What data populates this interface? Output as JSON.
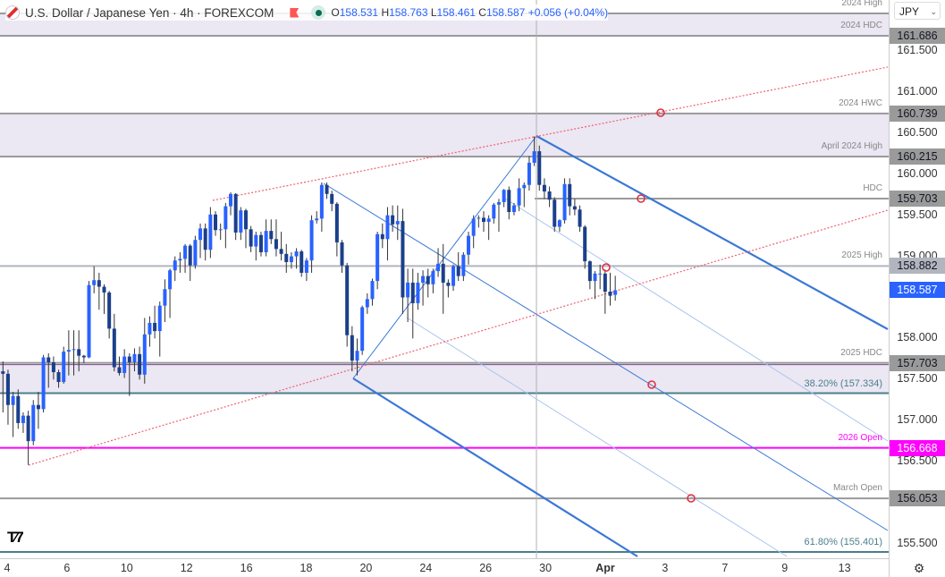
{
  "header": {
    "title": "U.S. Dollar / Japanese Yen · 4h · FOREXCOM",
    "open_label": "O",
    "open": "158.531",
    "high_label": "H",
    "high": "158.763",
    "low_label": "L",
    "low": "158.461",
    "close_label": "C",
    "close": "158.587",
    "change": "+0.056 (+0.04%)"
  },
  "currency_select": "JPY",
  "logo_text": "TV",
  "icons": {
    "settings": "gear-icon",
    "flag": "us-flag-icon",
    "alert": "red-flag-icon",
    "market_status": "market-open-dot-icon"
  },
  "colors": {
    "up": "#2962ff",
    "down": "#1b3f8b",
    "pitchfork": "#3a78d6",
    "channel": "#f06070",
    "magenta": "#ff00ff",
    "fib": "#4a7f8c",
    "zone": "#ebe7f3",
    "last_price": "#2962ff"
  },
  "chart_data": {
    "type": "candlestick",
    "symbol": "USDJPY",
    "timeframe": "4h",
    "ylim": [
      155.35,
      162.0
    ],
    "y_ticks": [
      "161.500",
      "161.000",
      "160.500",
      "160.000",
      "159.500",
      "159.000",
      "158.000",
      "157.500",
      "157.000",
      "156.500",
      "155.500"
    ],
    "x_ticks": [
      "4",
      "6",
      "10",
      "12",
      "16",
      "18",
      "20",
      "24",
      "26",
      "30",
      "Apr",
      "3",
      "7",
      "9",
      "13"
    ],
    "last_price": "158.587",
    "levels": [
      {
        "name": "2024 High",
        "price": 161.958,
        "label": "2024 High",
        "price_label": ""
      },
      {
        "name": "2024 HDC",
        "price": 161.686,
        "label": "2024 HDC",
        "price_label": "161.686"
      },
      {
        "name": "2024 HWC",
        "price": 160.739,
        "label": "2024 HWC",
        "price_label": "160.739"
      },
      {
        "name": "April 2024 High",
        "price": 160.215,
        "label": "April 2024 High",
        "price_label": "160.215"
      },
      {
        "name": "HDC",
        "price": 159.703,
        "label": "HDC",
        "price_label": "159.703"
      },
      {
        "name": "2025 High",
        "price": 158.882,
        "label": "2025 High",
        "price_label": "158.882"
      },
      {
        "name": "2025 HDC",
        "price": 157.703,
        "label": "2025 HDC",
        "price_label": "157.703"
      },
      {
        "name": "38.2% retracement",
        "price": 157.334,
        "label": "38.20% (157.334)",
        "price_label": ""
      },
      {
        "name": "2026 Open",
        "price": 156.668,
        "label": "2026 Open",
        "price_label": "156.668"
      },
      {
        "name": "March Open",
        "price": 156.053,
        "label": "March Open",
        "price_label": "156.053"
      },
      {
        "name": "61.8% retracement",
        "price": 155.401,
        "label": "61.80% (155.401)",
        "price_label": ""
      }
    ],
    "zones": [
      [
        161.686,
        161.958
      ],
      [
        160.215,
        160.739
      ],
      [
        157.334,
        157.703
      ]
    ],
    "candles": [
      [
        157.6,
        157.72,
        157.1,
        157.57
      ],
      [
        157.57,
        157.62,
        156.95,
        157.19
      ],
      [
        157.19,
        157.35,
        156.8,
        157.3
      ],
      [
        157.3,
        157.38,
        156.9,
        156.97
      ],
      [
        156.97,
        157.1,
        156.85,
        157.06
      ],
      [
        157.06,
        157.12,
        156.46,
        156.75
      ],
      [
        156.75,
        157.25,
        156.7,
        157.19
      ],
      [
        157.19,
        157.35,
        156.9,
        157.14
      ],
      [
        157.14,
        157.8,
        157.1,
        157.77
      ],
      [
        157.77,
        157.82,
        157.4,
        157.71
      ],
      [
        157.71,
        157.78,
        157.5,
        157.59
      ],
      [
        157.59,
        157.62,
        157.4,
        157.47
      ],
      [
        157.47,
        157.9,
        157.45,
        157.84
      ],
      [
        157.84,
        158.1,
        157.55,
        157.86
      ],
      [
        157.87,
        158.1,
        157.55,
        157.87
      ],
      [
        157.87,
        158.1,
        157.6,
        157.79
      ],
      [
        157.79,
        157.8,
        157.7,
        157.77
      ],
      [
        157.77,
        158.7,
        157.76,
        158.65
      ],
      [
        158.65,
        158.88,
        158.55,
        158.71
      ],
      [
        158.71,
        158.8,
        158.35,
        158.63
      ],
      [
        158.63,
        158.66,
        158.3,
        158.56
      ],
      [
        158.56,
        158.58,
        158.0,
        158.12
      ],
      [
        158.12,
        158.3,
        157.6,
        157.65
      ],
      [
        157.65,
        157.78,
        157.55,
        157.58
      ],
      [
        157.58,
        157.87,
        157.52,
        157.78
      ],
      [
        157.78,
        157.82,
        157.3,
        157.71
      ],
      [
        157.71,
        157.88,
        157.6,
        157.81
      ],
      [
        157.81,
        157.9,
        157.5,
        157.56
      ],
      [
        157.56,
        158.25,
        157.45,
        158.05
      ],
      [
        158.05,
        158.27,
        157.9,
        158.19
      ],
      [
        158.19,
        158.4,
        158.0,
        158.09
      ],
      [
        158.09,
        158.45,
        157.78,
        158.4
      ],
      [
        158.4,
        158.72,
        158.2,
        158.6
      ],
      [
        158.6,
        158.85,
        158.25,
        158.83
      ],
      [
        158.83,
        159.0,
        158.7,
        158.95
      ],
      [
        158.95,
        159.05,
        158.8,
        158.97
      ],
      [
        158.97,
        159.15,
        158.8,
        159.13
      ],
      [
        159.13,
        159.15,
        158.7,
        158.89
      ],
      [
        158.89,
        159.25,
        158.85,
        159.2
      ],
      [
        159.2,
        159.4,
        158.98,
        159.34
      ],
      [
        159.34,
        159.4,
        158.95,
        159.08
      ],
      [
        159.08,
        159.6,
        158.98,
        159.51
      ],
      [
        159.51,
        159.55,
        159.25,
        159.32
      ],
      [
        159.32,
        159.4,
        159.2,
        159.33
      ],
      [
        159.33,
        159.65,
        159.1,
        159.61
      ],
      [
        159.61,
        159.78,
        159.5,
        159.76
      ],
      [
        159.76,
        159.77,
        159.2,
        159.29
      ],
      [
        159.29,
        159.6,
        159.2,
        159.56
      ],
      [
        159.56,
        159.58,
        159.1,
        159.33
      ],
      [
        159.33,
        159.37,
        159.05,
        159.12
      ],
      [
        159.12,
        159.3,
        158.95,
        159.26
      ],
      [
        159.26,
        159.3,
        159.0,
        159.05
      ],
      [
        159.05,
        159.45,
        159.0,
        159.31
      ],
      [
        159.31,
        159.45,
        159.15,
        159.21
      ],
      [
        159.21,
        159.45,
        159.0,
        159.09
      ],
      [
        159.09,
        159.3,
        158.95,
        159.03
      ],
      [
        159.03,
        159.15,
        158.8,
        158.93
      ],
      [
        158.93,
        159.05,
        158.85,
        159.0
      ],
      [
        159.0,
        159.1,
        158.85,
        159.06
      ],
      [
        159.06,
        159.08,
        158.75,
        158.8
      ],
      [
        158.8,
        158.98,
        158.7,
        158.95
      ],
      [
        158.95,
        159.5,
        158.8,
        159.44
      ],
      [
        159.44,
        159.55,
        159.4,
        159.46
      ],
      [
        159.46,
        159.9,
        159.3,
        159.87
      ],
      [
        159.87,
        159.9,
        159.7,
        159.76
      ],
      [
        159.76,
        159.8,
        159.55,
        159.64
      ],
      [
        159.64,
        159.66,
        159.0,
        159.17
      ],
      [
        159.17,
        159.2,
        158.8,
        158.89
      ],
      [
        158.89,
        158.92,
        157.9,
        158.04
      ],
      [
        158.04,
        158.15,
        157.6,
        157.73
      ],
      [
        157.73,
        158.0,
        157.55,
        157.85
      ],
      [
        157.85,
        158.4,
        157.8,
        158.38
      ],
      [
        158.38,
        158.55,
        158.3,
        158.48
      ],
      [
        158.48,
        158.73,
        158.4,
        158.7
      ],
      [
        158.7,
        159.3,
        158.6,
        159.27
      ],
      [
        159.27,
        159.4,
        159.1,
        159.21
      ],
      [
        159.21,
        159.6,
        158.95,
        159.5
      ],
      [
        159.5,
        159.62,
        159.3,
        159.39
      ],
      [
        159.39,
        159.62,
        159.2,
        159.43
      ],
      [
        159.43,
        159.58,
        158.3,
        158.5
      ],
      [
        158.5,
        158.85,
        158.2,
        158.68
      ],
      [
        158.68,
        158.85,
        158.0,
        158.43
      ],
      [
        158.43,
        158.8,
        158.35,
        158.68
      ],
      [
        158.68,
        158.83,
        158.4,
        158.76
      ],
      [
        158.76,
        158.85,
        158.5,
        158.66
      ],
      [
        158.66,
        158.85,
        158.55,
        158.82
      ],
      [
        158.82,
        159.1,
        158.75,
        158.91
      ],
      [
        158.91,
        159.15,
        158.3,
        158.68
      ],
      [
        158.68,
        158.72,
        158.5,
        158.64
      ],
      [
        158.64,
        158.9,
        158.58,
        158.88
      ],
      [
        158.88,
        159.05,
        158.7,
        158.76
      ],
      [
        158.76,
        159.05,
        158.7,
        159.02
      ],
      [
        159.02,
        159.3,
        158.9,
        159.25
      ],
      [
        159.25,
        159.5,
        159.1,
        159.46
      ],
      [
        159.46,
        159.5,
        159.35,
        159.47
      ],
      [
        159.47,
        159.55,
        159.3,
        159.42
      ],
      [
        159.42,
        159.5,
        159.2,
        159.46
      ],
      [
        159.46,
        159.65,
        159.4,
        159.63
      ],
      [
        159.63,
        159.7,
        159.3,
        159.66
      ],
      [
        159.66,
        159.82,
        159.6,
        159.81
      ],
      [
        159.81,
        159.85,
        159.45,
        159.54
      ],
      [
        159.54,
        159.65,
        159.5,
        159.62
      ],
      [
        159.62,
        159.95,
        159.55,
        159.83
      ],
      [
        159.83,
        159.9,
        159.6,
        159.87
      ],
      [
        159.87,
        160.22,
        159.8,
        160.14
      ],
      [
        160.14,
        160.46,
        160.1,
        160.28
      ],
      [
        160.28,
        160.35,
        159.8,
        159.87
      ],
      [
        159.87,
        159.95,
        159.7,
        159.79
      ],
      [
        159.79,
        159.85,
        159.6,
        159.69
      ],
      [
        159.69,
        159.72,
        159.3,
        159.36
      ],
      [
        159.36,
        159.45,
        159.3,
        159.44
      ],
      [
        159.44,
        159.95,
        159.4,
        159.88
      ],
      [
        159.88,
        159.95,
        159.5,
        159.61
      ],
      [
        159.61,
        159.7,
        159.5,
        159.57
      ],
      [
        159.57,
        159.62,
        159.3,
        159.36
      ],
      [
        159.36,
        159.38,
        158.85,
        158.94
      ],
      [
        158.94,
        158.95,
        158.6,
        158.7
      ],
      [
        158.7,
        158.82,
        158.48,
        158.79
      ],
      [
        158.79,
        158.9,
        158.6,
        158.79
      ],
      [
        158.79,
        158.84,
        158.3,
        158.57
      ],
      [
        158.57,
        158.8,
        158.4,
        158.52
      ],
      [
        158.531,
        158.763,
        158.461,
        158.587
      ]
    ]
  }
}
